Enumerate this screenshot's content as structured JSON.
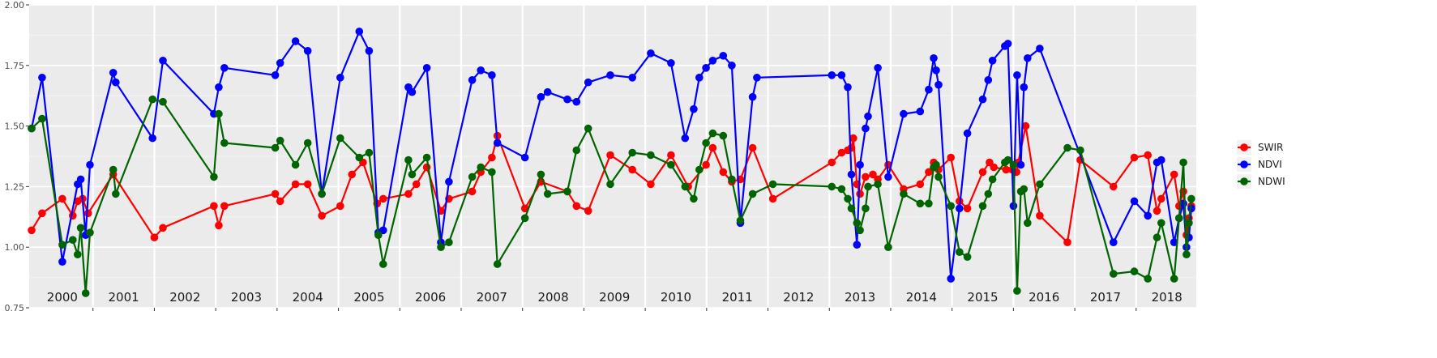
{
  "chart_data": {
    "type": "line",
    "title": "",
    "xlabel": "",
    "ylabel": "",
    "xlim": [
      1999.96,
      2018.98
    ],
    "ylim": [
      0.75,
      2.0
    ],
    "yticks": [
      0.75,
      1.0,
      1.25,
      1.5,
      1.75,
      2.0
    ],
    "ytick_labels": [
      "0.75",
      "1.00",
      "1.25",
      "1.50",
      "1.75",
      "2.00"
    ],
    "year_labels": [
      "2000",
      "2001",
      "2002",
      "2003",
      "2004",
      "2005",
      "2006",
      "2007",
      "2008",
      "2009",
      "2010",
      "2011",
      "2012",
      "2013",
      "2014",
      "2015",
      "2016",
      "2017",
      "2018"
    ],
    "grid": true,
    "legend_position": "right",
    "series": [
      {
        "name": "SWIR",
        "color": "#ff0000",
        "x": [
          2000.0,
          2000.17,
          2000.5,
          2000.67,
          2000.75,
          2000.83,
          2000.92,
          2001.33,
          2002.0,
          2002.14,
          2002.97,
          2003.05,
          2003.14,
          2003.97,
          2004.05,
          2004.3,
          2004.5,
          2004.73,
          2005.03,
          2005.22,
          2005.4,
          2005.63,
          2005.73,
          2006.14,
          2006.27,
          2006.44,
          2006.67,
          2006.8,
          2007.18,
          2007.32,
          2007.5,
          2007.59,
          2008.04,
          2008.3,
          2008.73,
          2008.88,
          2009.07,
          2009.43,
          2009.79,
          2010.09,
          2010.42,
          2010.7,
          2010.99,
          2011.1,
          2011.27,
          2011.41,
          2011.55,
          2011.75,
          2012.08,
          2013.04,
          2013.2,
          2013.3,
          2013.36,
          2013.39,
          2013.45,
          2013.5,
          2013.59,
          2013.71,
          2013.79,
          2013.96,
          2014.21,
          2014.48,
          2014.62,
          2014.7,
          2014.74,
          2014.78,
          2014.98,
          2015.12,
          2015.25,
          2015.5,
          2015.61,
          2015.68,
          2015.88,
          2015.98,
          2016.05,
          2016.08,
          2016.2,
          2016.43,
          2016.88,
          2017.09,
          2017.63,
          2017.97,
          2018.19,
          2018.34,
          2018.41,
          2018.62,
          2018.7,
          2018.77,
          2018.82,
          2018.86,
          2018.9
        ],
        "values": [
          1.07,
          1.14,
          1.2,
          1.13,
          1.19,
          1.2,
          1.14,
          1.3,
          1.04,
          1.08,
          1.17,
          1.09,
          1.17,
          1.22,
          1.19,
          1.26,
          1.26,
          1.13,
          1.17,
          1.3,
          1.35,
          1.18,
          1.2,
          1.22,
          1.26,
          1.33,
          1.15,
          1.2,
          1.23,
          1.31,
          1.37,
          1.46,
          1.16,
          1.27,
          1.23,
          1.17,
          1.15,
          1.38,
          1.32,
          1.26,
          1.38,
          1.25,
          1.34,
          1.41,
          1.31,
          1.27,
          1.28,
          1.41,
          1.2,
          1.35,
          1.39,
          1.4,
          1.41,
          1.45,
          1.26,
          1.22,
          1.29,
          1.3,
          1.28,
          1.34,
          1.24,
          1.26,
          1.31,
          1.35,
          1.33,
          1.32,
          1.37,
          1.19,
          1.16,
          1.31,
          1.35,
          1.33,
          1.32,
          1.32,
          1.31,
          1.35,
          1.5,
          1.13,
          1.02,
          1.36,
          1.25,
          1.37,
          1.38,
          1.15,
          1.2,
          1.3,
          1.17,
          1.23,
          1.05,
          1.12,
          1.17
        ]
      },
      {
        "name": "NDVI",
        "color": "#0000ff",
        "x": [
          2000.0,
          2000.17,
          2000.5,
          2000.75,
          2000.8,
          2000.88,
          2000.95,
          2001.33,
          2001.37,
          2001.97,
          2002.14,
          2002.97,
          2003.05,
          2003.14,
          2003.97,
          2004.05,
          2004.3,
          2004.5,
          2004.73,
          2005.03,
          2005.34,
          2005.5,
          2005.65,
          2005.73,
          2006.14,
          2006.2,
          2006.44,
          2006.67,
          2006.8,
          2007.18,
          2007.32,
          2007.5,
          2007.59,
          2008.04,
          2008.3,
          2008.41,
          2008.73,
          2008.88,
          2009.07,
          2009.43,
          2009.79,
          2010.09,
          2010.42,
          2010.65,
          2010.79,
          2010.88,
          2010.99,
          2011.1,
          2011.27,
          2011.41,
          2011.55,
          2011.75,
          2011.82,
          2013.04,
          2013.2,
          2013.3,
          2013.36,
          2013.45,
          2013.5,
          2013.59,
          2013.63,
          2013.79,
          2013.96,
          2014.21,
          2014.48,
          2014.62,
          2014.7,
          2014.74,
          2014.78,
          2014.98,
          2015.12,
          2015.25,
          2015.5,
          2015.59,
          2015.66,
          2015.86,
          2015.91,
          2016.0,
          2016.06,
          2016.12,
          2016.17,
          2016.23,
          2016.43,
          2017.63,
          2017.97,
          2018.19,
          2018.34,
          2018.41,
          2018.62,
          2018.7,
          2018.77,
          2018.82,
          2018.86,
          2018.9
        ],
        "values": [
          1.49,
          1.7,
          0.94,
          1.26,
          1.28,
          1.05,
          1.34,
          1.72,
          1.68,
          1.45,
          1.77,
          1.55,
          1.66,
          1.74,
          1.71,
          1.76,
          1.85,
          1.81,
          1.22,
          1.7,
          1.89,
          1.81,
          1.06,
          1.07,
          1.66,
          1.64,
          1.74,
          1.02,
          1.27,
          1.69,
          1.73,
          1.71,
          1.43,
          1.37,
          1.62,
          1.64,
          1.61,
          1.6,
          1.68,
          1.71,
          1.7,
          1.8,
          1.76,
          1.45,
          1.57,
          1.7,
          1.74,
          1.77,
          1.79,
          1.75,
          1.1,
          1.62,
          1.7,
          1.71,
          1.71,
          1.66,
          1.3,
          1.01,
          1.34,
          1.49,
          1.54,
          1.74,
          1.29,
          1.55,
          1.56,
          1.65,
          1.78,
          1.73,
          1.67,
          0.87,
          1.16,
          1.47,
          1.61,
          1.69,
          1.77,
          1.83,
          1.84,
          1.17,
          1.71,
          1.34,
          1.66,
          1.78,
          1.82,
          1.02,
          1.19,
          1.13,
          1.35,
          1.36,
          1.02,
          1.12,
          1.18,
          1.0,
          1.04,
          1.16
        ]
      },
      {
        "name": "NDWI",
        "color": "#006400",
        "x": [
          2000.0,
          2000.17,
          2000.5,
          2000.67,
          2000.75,
          2000.8,
          2000.88,
          2000.95,
          2001.33,
          2001.37,
          2001.97,
          2002.14,
          2002.97,
          2003.05,
          2003.14,
          2003.97,
          2004.05,
          2004.3,
          2004.5,
          2004.73,
          2005.03,
          2005.34,
          2005.5,
          2005.65,
          2005.73,
          2006.14,
          2006.2,
          2006.44,
          2006.67,
          2006.8,
          2007.18,
          2007.32,
          2007.5,
          2007.59,
          2008.04,
          2008.3,
          2008.41,
          2008.73,
          2008.88,
          2009.07,
          2009.43,
          2009.79,
          2010.09,
          2010.42,
          2010.65,
          2010.79,
          2010.88,
          2010.99,
          2011.1,
          2011.27,
          2011.41,
          2011.55,
          2011.75,
          2012.08,
          2013.04,
          2013.2,
          2013.3,
          2013.36,
          2013.45,
          2013.5,
          2013.59,
          2013.63,
          2013.79,
          2013.96,
          2014.21,
          2014.48,
          2014.62,
          2014.7,
          2014.74,
          2014.78,
          2014.98,
          2015.12,
          2015.25,
          2015.5,
          2015.59,
          2015.66,
          2015.86,
          2015.91,
          2016.0,
          2016.06,
          2016.12,
          2016.17,
          2016.23,
          2016.43,
          2016.88,
          2017.09,
          2017.63,
          2017.97,
          2018.19,
          2018.34,
          2018.41,
          2018.62,
          2018.7,
          2018.77,
          2018.82,
          2018.86,
          2018.9
        ],
        "values": [
          1.49,
          1.53,
          1.01,
          1.03,
          0.97,
          1.08,
          0.81,
          1.06,
          1.32,
          1.22,
          1.61,
          1.6,
          1.29,
          1.55,
          1.43,
          1.41,
          1.44,
          1.34,
          1.43,
          1.22,
          1.45,
          1.37,
          1.39,
          1.05,
          0.93,
          1.36,
          1.3,
          1.37,
          1.0,
          1.02,
          1.29,
          1.33,
          1.31,
          0.93,
          1.12,
          1.3,
          1.22,
          1.23,
          1.4,
          1.49,
          1.26,
          1.39,
          1.38,
          1.34,
          1.25,
          1.2,
          1.32,
          1.43,
          1.47,
          1.46,
          1.28,
          1.11,
          1.22,
          1.26,
          1.25,
          1.24,
          1.2,
          1.16,
          1.1,
          1.07,
          1.16,
          1.25,
          1.26,
          1.0,
          1.22,
          1.18,
          1.18,
          1.33,
          1.34,
          1.29,
          1.17,
          0.98,
          0.96,
          1.17,
          1.22,
          1.28,
          1.35,
          1.36,
          1.34,
          0.82,
          1.23,
          1.24,
          1.1,
          1.26,
          1.41,
          1.4,
          0.89,
          0.9,
          0.87,
          1.04,
          1.1,
          0.87,
          1.12,
          1.35,
          0.97,
          1.1,
          1.2
        ]
      }
    ]
  }
}
